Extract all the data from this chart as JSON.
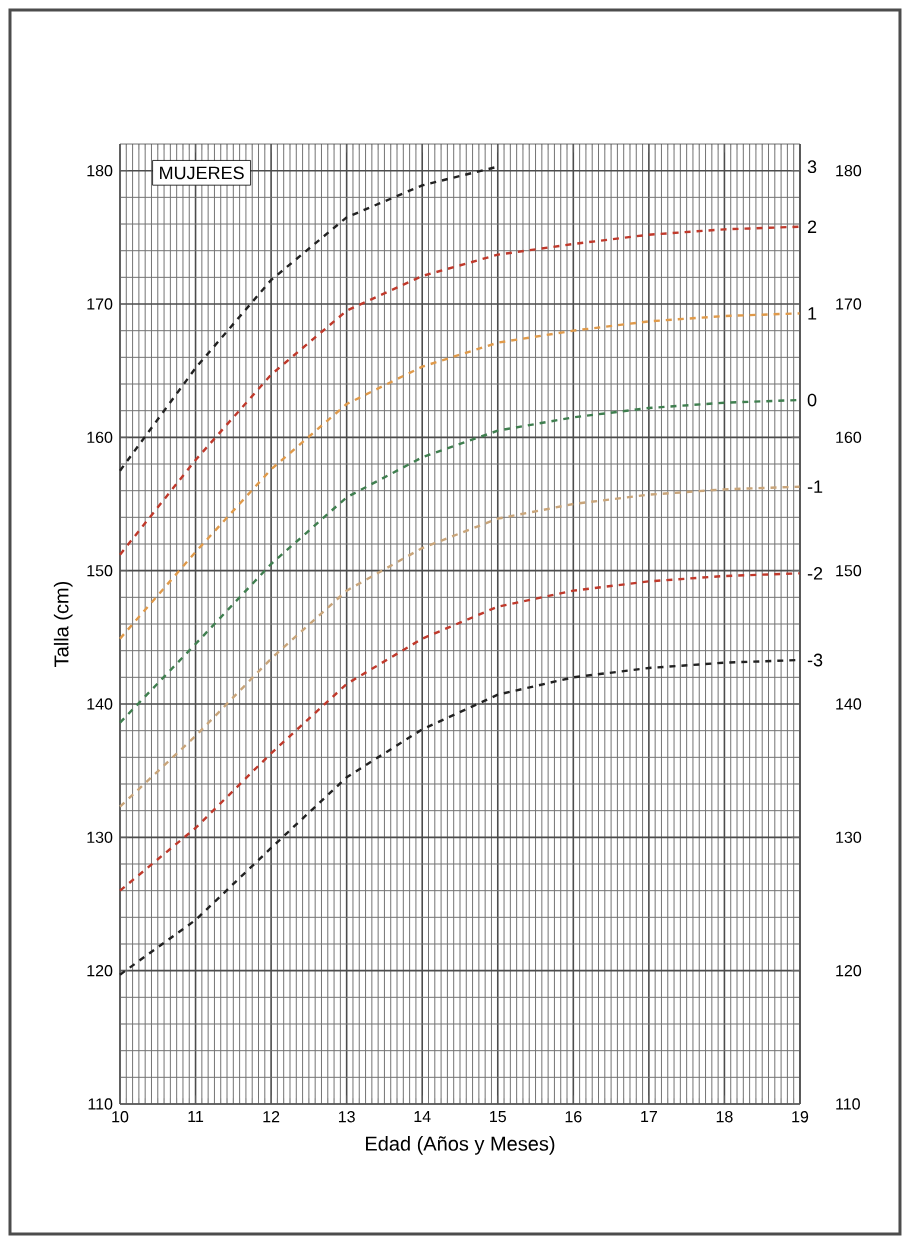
{
  "chart_data": {
    "type": "line",
    "xlabel": "Edad (Años y Meses)",
    "ylabel": "Talla (cm)",
    "annotations": [
      "MUJERES"
    ],
    "x": [
      10,
      11,
      12,
      13,
      14,
      15,
      16,
      17,
      18,
      19
    ],
    "xlim": [
      10,
      19
    ],
    "xticks": [
      10,
      11,
      12,
      13,
      14,
      15,
      16,
      17,
      18,
      19
    ],
    "ylim": [
      110,
      182
    ],
    "yticks": [
      110,
      120,
      130,
      140,
      150,
      160,
      170,
      180
    ],
    "y2lim": [
      110,
      182
    ],
    "y2ticks": [
      110,
      120,
      130,
      140,
      150,
      160,
      170,
      180
    ],
    "grid": true,
    "line_style": "dashed",
    "series": [
      {
        "name": "3",
        "color": "#222222",
        "values": [
          157.5,
          165.2,
          171.8,
          176.5,
          178.9,
          180.3,
          null,
          null,
          null,
          null
        ]
      },
      {
        "name": "2",
        "color": "#c0392b",
        "values": [
          151.2,
          158.3,
          164.7,
          169.5,
          172.1,
          173.7,
          174.5,
          175.2,
          175.6,
          175.8
        ]
      },
      {
        "name": "1",
        "color": "#e09a4a",
        "values": [
          144.9,
          151.4,
          157.6,
          162.5,
          165.3,
          167.1,
          168.0,
          168.7,
          169.1,
          169.3
        ]
      },
      {
        "name": "0",
        "color": "#3f7f4f",
        "values": [
          138.6,
          144.5,
          150.5,
          155.5,
          158.5,
          160.5,
          161.5,
          162.2,
          162.6,
          162.8
        ]
      },
      {
        "name": "-1",
        "color": "#c9a57a",
        "values": [
          132.3,
          137.6,
          143.4,
          148.5,
          151.7,
          153.9,
          155.0,
          155.7,
          156.1,
          156.3
        ]
      },
      {
        "name": "-2",
        "color": "#c0392b",
        "values": [
          126.0,
          130.7,
          136.3,
          141.5,
          144.9,
          147.3,
          148.5,
          149.2,
          149.6,
          149.8
        ]
      },
      {
        "name": "-3",
        "color": "#222222",
        "values": [
          119.7,
          123.8,
          129.2,
          134.5,
          138.1,
          140.7,
          142.0,
          142.7,
          143.1,
          143.3
        ]
      }
    ]
  }
}
